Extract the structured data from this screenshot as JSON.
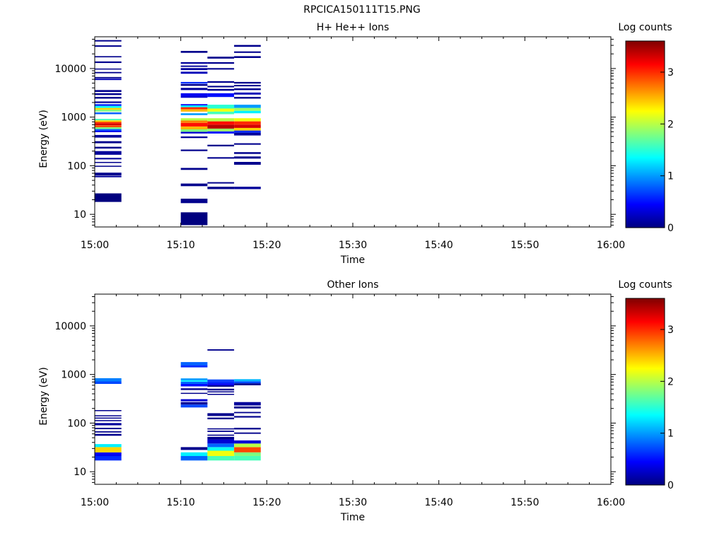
{
  "figure_title": "RPCICA150111T15.PNG",
  "colors": {
    "jet": [
      "#00007f",
      "#0000ff",
      "#007fff",
      "#00ffff",
      "#7fff7f",
      "#ffff00",
      "#ff7f00",
      "#ff0000",
      "#7f0000"
    ]
  },
  "chart_data": [
    {
      "type": "heatmap",
      "title": "H+ He++ Ions",
      "xlabel": "Time",
      "ylabel": "Energy (eV)",
      "x_ticks": [
        "15:00",
        "15:10",
        "15:20",
        "15:30",
        "15:40",
        "15:50",
        "16:00"
      ],
      "x_range_minutes": [
        0,
        60
      ],
      "y_scale": "log",
      "y_range": [
        5.5,
        45000
      ],
      "y_ticks": [
        10,
        100,
        1000,
        10000
      ],
      "colorbar": {
        "label": "Log counts",
        "range": [
          0,
          3.6
        ],
        "ticks": [
          0,
          1,
          2,
          3
        ]
      },
      "time_bins_minutes": [
        [
          0,
          3.1
        ],
        [
          10,
          13.1
        ],
        [
          13.1,
          16.2
        ],
        [
          16.2,
          19.3
        ]
      ],
      "cells": [
        [
          0,
          18,
          27,
          0.0
        ],
        [
          0,
          58,
          62,
          0.1
        ],
        [
          0,
          63,
          72,
          0.05
        ],
        [
          0,
          95,
          100,
          0.05
        ],
        [
          0,
          114,
          120,
          0.05
        ],
        [
          0,
          135,
          145,
          0.1
        ],
        [
          0,
          168,
          200,
          0.1
        ],
        [
          0,
          225,
          245,
          0.05
        ],
        [
          0,
          290,
          320,
          0.05
        ],
        [
          0,
          380,
          430,
          0.1
        ],
        [
          0,
          490,
          530,
          0.4
        ],
        [
          0,
          530,
          570,
          0.8
        ],
        [
          0,
          570,
          620,
          1.8
        ],
        [
          0,
          620,
          680,
          2.9
        ],
        [
          0,
          680,
          740,
          3.3
        ],
        [
          0,
          740,
          800,
          3.0
        ],
        [
          0,
          800,
          860,
          2.4
        ],
        [
          0,
          860,
          920,
          1.6
        ],
        [
          0,
          1150,
          1250,
          0.8
        ],
        [
          0,
          1300,
          1420,
          1.8
        ],
        [
          0,
          1420,
          1550,
          2.4
        ],
        [
          0,
          1550,
          1700,
          1.4
        ],
        [
          0,
          1700,
          1850,
          0.6
        ],
        [
          0,
          1950,
          2100,
          0.1
        ],
        [
          0,
          2400,
          2600,
          0.05
        ],
        [
          0,
          2850,
          3100,
          0.05
        ],
        [
          0,
          3300,
          3600,
          0.05
        ],
        [
          0,
          5800,
          6200,
          0.2
        ],
        [
          0,
          6300,
          6700,
          0.05
        ],
        [
          0,
          8000,
          8500,
          0.05
        ],
        [
          0,
          9500,
          10000,
          0.05
        ],
        [
          0,
          13000,
          14000,
          0.05
        ],
        [
          0,
          17000,
          18000,
          0.05
        ],
        [
          0,
          28000,
          30000,
          0.05
        ],
        [
          0,
          36000,
          38500,
          0.05
        ],
        [
          1,
          6,
          11,
          0.0
        ],
        [
          1,
          17,
          21,
          0.05
        ],
        [
          1,
          38,
          43,
          0.05
        ],
        [
          1,
          82,
          90,
          0.05
        ],
        [
          1,
          200,
          215,
          0.05
        ],
        [
          1,
          370,
          400,
          0.1
        ],
        [
          1,
          460,
          500,
          0.3
        ],
        [
          1,
          500,
          560,
          1.8
        ],
        [
          1,
          560,
          640,
          2.5
        ],
        [
          1,
          640,
          760,
          3.1
        ],
        [
          1,
          760,
          850,
          2.7
        ],
        [
          1,
          850,
          950,
          2.0
        ],
        [
          1,
          1100,
          1200,
          1.0
        ],
        [
          1,
          1300,
          1450,
          2.5
        ],
        [
          1,
          1450,
          1600,
          3.0
        ],
        [
          1,
          1600,
          1750,
          1.3
        ],
        [
          1,
          1750,
          1850,
          0.4
        ],
        [
          1,
          2500,
          2700,
          0.3
        ],
        [
          1,
          2700,
          3100,
          0.4
        ],
        [
          1,
          3600,
          4000,
          0.1
        ],
        [
          1,
          4400,
          4800,
          0.05
        ],
        [
          1,
          4900,
          5300,
          0.6
        ],
        [
          1,
          7800,
          8600,
          0.2
        ],
        [
          1,
          9300,
          10200,
          0.1
        ],
        [
          1,
          10800,
          11500,
          0.1
        ],
        [
          1,
          12500,
          13500,
          0.1
        ],
        [
          1,
          21000,
          23000,
          0.05
        ],
        [
          2,
          33,
          37,
          0.05
        ],
        [
          2,
          43,
          46,
          0.05
        ],
        [
          2,
          140,
          150,
          0.05
        ],
        [
          2,
          250,
          270,
          0.05
        ],
        [
          2,
          460,
          510,
          0.5
        ],
        [
          2,
          510,
          580,
          1.9
        ],
        [
          2,
          580,
          700,
          3.4
        ],
        [
          2,
          700,
          820,
          3.1
        ],
        [
          2,
          820,
          950,
          2.0
        ],
        [
          2,
          1150,
          1300,
          1.6
        ],
        [
          2,
          1300,
          1500,
          2.2
        ],
        [
          2,
          1500,
          1800,
          1.5
        ],
        [
          2,
          2600,
          3100,
          0.5
        ],
        [
          2,
          3500,
          3800,
          0.05
        ],
        [
          2,
          4100,
          4400,
          0.05
        ],
        [
          2,
          5100,
          5500,
          0.05
        ],
        [
          2,
          9500,
          10200,
          0.05
        ],
        [
          2,
          12500,
          13500,
          0.05
        ],
        [
          2,
          16000,
          17500,
          0.05
        ],
        [
          3,
          33,
          37,
          0.1
        ],
        [
          3,
          105,
          120,
          0.05
        ],
        [
          3,
          140,
          155,
          0.05
        ],
        [
          3,
          175,
          190,
          0.05
        ],
        [
          3,
          270,
          290,
          0.05
        ],
        [
          3,
          420,
          480,
          0.1
        ],
        [
          3,
          480,
          530,
          0.6
        ],
        [
          3,
          530,
          600,
          2.4
        ],
        [
          3,
          600,
          700,
          3.3
        ],
        [
          3,
          700,
          820,
          3.0
        ],
        [
          3,
          820,
          950,
          2.2
        ],
        [
          3,
          1200,
          1350,
          1.3
        ],
        [
          3,
          1350,
          1550,
          1.9
        ],
        [
          3,
          1550,
          1800,
          1.0
        ],
        [
          3,
          2400,
          2600,
          0.05
        ],
        [
          3,
          2900,
          3200,
          0.2
        ],
        [
          3,
          3600,
          3900,
          0.05
        ],
        [
          3,
          4300,
          4600,
          0.05
        ],
        [
          3,
          4900,
          5300,
          0.05
        ],
        [
          3,
          16500,
          18000,
          0.05
        ],
        [
          3,
          21000,
          22500,
          0.05
        ],
        [
          3,
          28000,
          30500,
          0.05
        ]
      ]
    },
    {
      "type": "heatmap",
      "title": "Other Ions",
      "xlabel": "Time",
      "ylabel": "Energy (eV)",
      "x_ticks": [
        "15:00",
        "15:10",
        "15:20",
        "15:30",
        "15:40",
        "15:50",
        "16:00"
      ],
      "x_range_minutes": [
        0,
        60
      ],
      "y_scale": "log",
      "y_range": [
        5.5,
        45000
      ],
      "y_ticks": [
        10,
        100,
        1000,
        10000
      ],
      "colorbar": {
        "label": "Log counts",
        "range": [
          0,
          3.6
        ],
        "ticks": [
          0,
          1,
          2,
          3
        ]
      },
      "time_bins_minutes": [
        [
          0,
          3.1
        ],
        [
          10,
          13.1
        ],
        [
          13.1,
          16.2
        ],
        [
          16.2,
          19.3
        ]
      ],
      "cells": [
        [
          0,
          17,
          21,
          0.6
        ],
        [
          0,
          21,
          25,
          0.4
        ],
        [
          0,
          25,
          32,
          2.4
        ],
        [
          0,
          32,
          37,
          1.3
        ],
        [
          0,
          55,
          60,
          0.05
        ],
        [
          0,
          64,
          68,
          0.05
        ],
        [
          0,
          75,
          80,
          0.05
        ],
        [
          0,
          90,
          100,
          0.1
        ],
        [
          0,
          110,
          115,
          0.05
        ],
        [
          0,
          125,
          130,
          0.05
        ],
        [
          0,
          140,
          145,
          0.05
        ],
        [
          0,
          180,
          185,
          0.05
        ],
        [
          0,
          640,
          720,
          0.7
        ],
        [
          0,
          720,
          840,
          0.9
        ],
        [
          1,
          17,
          21,
          0.8
        ],
        [
          1,
          21,
          25,
          1.3
        ],
        [
          1,
          28,
          32,
          0.05
        ],
        [
          1,
          210,
          240,
          0.7
        ],
        [
          1,
          240,
          270,
          0.1
        ],
        [
          1,
          280,
          310,
          0.3
        ],
        [
          1,
          400,
          420,
          0.05
        ],
        [
          1,
          480,
          520,
          0.05
        ],
        [
          1,
          570,
          640,
          0.5
        ],
        [
          1,
          640,
          710,
          0.8
        ],
        [
          1,
          710,
          760,
          1.3
        ],
        [
          1,
          760,
          830,
          1.0
        ],
        [
          1,
          1400,
          1550,
          0.6
        ],
        [
          1,
          1550,
          1800,
          0.8
        ],
        [
          2,
          17,
          21,
          1.6
        ],
        [
          2,
          21,
          27,
          2.2
        ],
        [
          2,
          27,
          32,
          1.4
        ],
        [
          2,
          32,
          38,
          0.8
        ],
        [
          2,
          38,
          46,
          0.3
        ],
        [
          2,
          46,
          52,
          0.05
        ],
        [
          2,
          55,
          58,
          0.05
        ],
        [
          2,
          66,
          70,
          0.05
        ],
        [
          2,
          74,
          78,
          0.05
        ],
        [
          2,
          120,
          130,
          0.05
        ],
        [
          2,
          140,
          160,
          0.05
        ],
        [
          2,
          380,
          400,
          0.05
        ],
        [
          2,
          430,
          450,
          0.05
        ],
        [
          2,
          470,
          510,
          0.05
        ],
        [
          2,
          560,
          600,
          0.05
        ],
        [
          2,
          600,
          660,
          0.4
        ],
        [
          2,
          660,
          730,
          0.6
        ],
        [
          2,
          730,
          790,
          0.7
        ],
        [
          2,
          3100,
          3300,
          0.05
        ],
        [
          3,
          17,
          21,
          1.6
        ],
        [
          3,
          21,
          25,
          1.8
        ],
        [
          3,
          25,
          32,
          2.9
        ],
        [
          3,
          32,
          38,
          2.0
        ],
        [
          3,
          38,
          44,
          0.3
        ],
        [
          3,
          60,
          64,
          0.05
        ],
        [
          3,
          74,
          80,
          0.05
        ],
        [
          3,
          130,
          140,
          0.05
        ],
        [
          3,
          160,
          170,
          0.05
        ],
        [
          3,
          200,
          220,
          0.05
        ],
        [
          3,
          230,
          270,
          0.1
        ],
        [
          3,
          600,
          660,
          0.05
        ],
        [
          3,
          660,
          720,
          0.7
        ],
        [
          3,
          720,
          800,
          1.1
        ]
      ]
    }
  ]
}
